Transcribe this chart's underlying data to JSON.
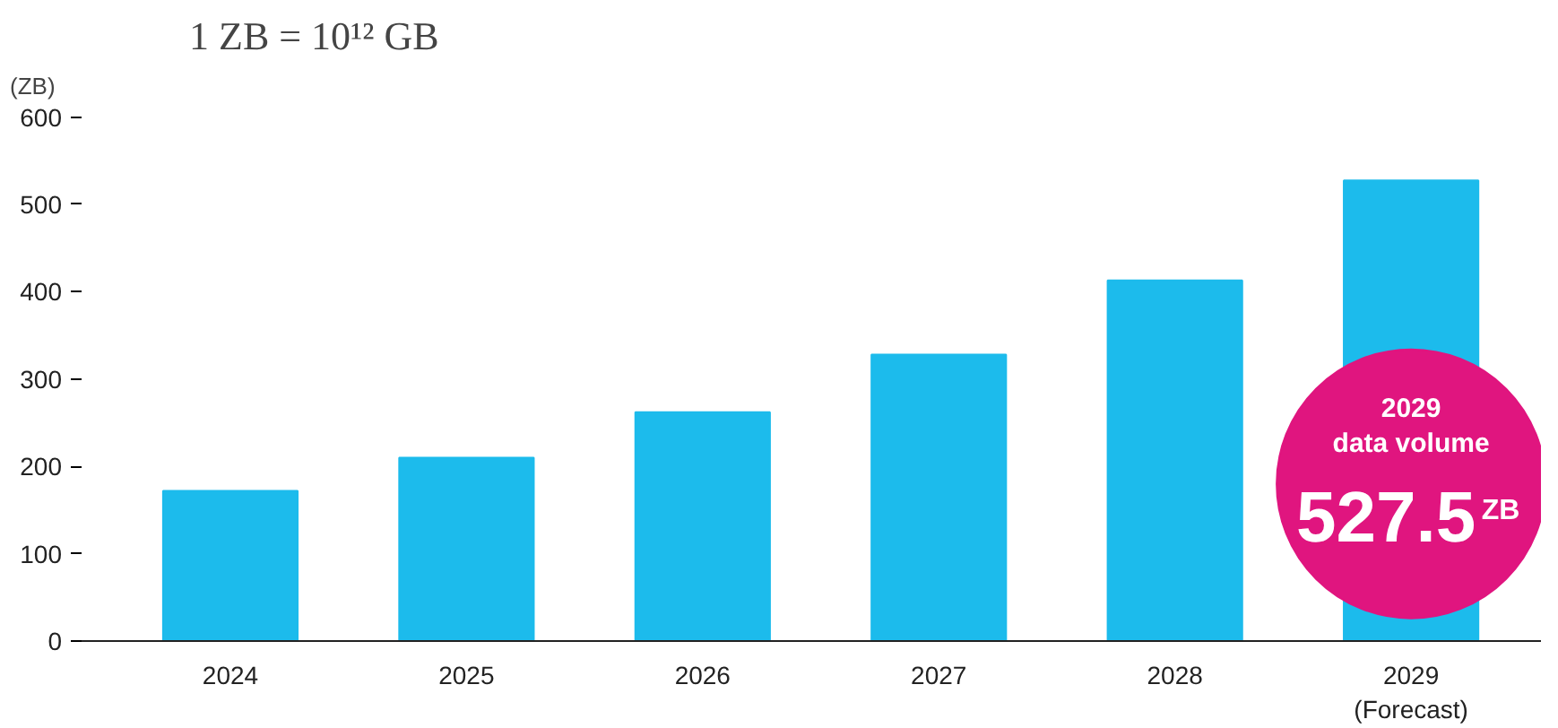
{
  "chart_data": {
    "type": "bar",
    "title": "1 ZB = 10¹² GB",
    "ylabel": "(ZB)",
    "categories": [
      "2024",
      "2025",
      "2026",
      "2027",
      "2028",
      "2029\n(Forecast)"
    ],
    "values": [
      172,
      210,
      262,
      328,
      413,
      527.5
    ],
    "color": "#1cbbec",
    "ylim": [
      0,
      600
    ],
    "yticks": [
      0,
      100,
      200,
      300,
      400,
      500,
      600
    ],
    "grid": false,
    "annotations": [
      "2029\ndata volume",
      "527.5",
      "ZB"
    ]
  }
}
